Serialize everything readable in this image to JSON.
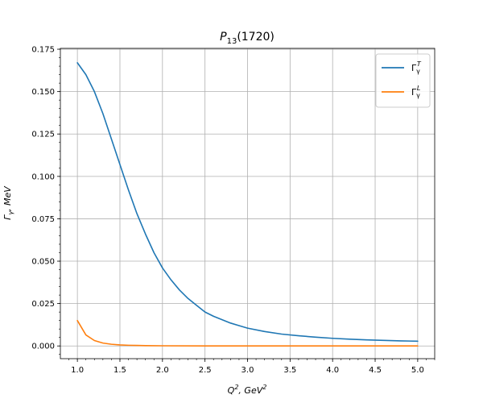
{
  "chart_data": {
    "type": "line",
    "title": {
      "main": "P",
      "sub": "13",
      "rest": "(1720)"
    },
    "xlabel": {
      "base": "Q",
      "sup": "2",
      "mid": ", GeV",
      "sup2": "2"
    },
    "ylabel": {
      "base": "Γ",
      "sub": "γ",
      "rest": ", MeV"
    },
    "xlim": [
      0.8,
      5.2
    ],
    "ylim": [
      -0.0075,
      0.1755
    ],
    "xticks": [
      "1.0",
      "1.5",
      "2.0",
      "2.5",
      "3.0",
      "3.5",
      "4.0",
      "4.5",
      "5.0"
    ],
    "yticks": [
      "0.000",
      "0.025",
      "0.050",
      "0.075",
      "0.100",
      "0.125",
      "0.150",
      "0.175"
    ],
    "grid": true,
    "legend_position": "top-right",
    "series": [
      {
        "name": "Γγ^T",
        "legend": {
          "base": "Γ",
          "sub": "γ",
          "sup": "T"
        },
        "color": "#1f77b4",
        "x": [
          1.0,
          1.1,
          1.2,
          1.3,
          1.4,
          1.5,
          1.6,
          1.7,
          1.8,
          1.9,
          2.0,
          2.1,
          2.2,
          2.3,
          2.4,
          2.5,
          2.6,
          2.7,
          2.8,
          2.9,
          3.0,
          3.2,
          3.4,
          3.6,
          3.8,
          4.0,
          4.2,
          4.4,
          4.6,
          4.8,
          5.0
        ],
        "y": [
          0.167,
          0.16,
          0.15,
          0.137,
          0.122,
          0.107,
          0.092,
          0.078,
          0.066,
          0.055,
          0.046,
          0.039,
          0.033,
          0.028,
          0.024,
          0.02,
          0.0175,
          0.0155,
          0.0135,
          0.012,
          0.0105,
          0.0085,
          0.007,
          0.006,
          0.0052,
          0.0045,
          0.004,
          0.0036,
          0.0033,
          0.003,
          0.0028
        ]
      },
      {
        "name": "Γγ^L",
        "legend": {
          "base": "Γ",
          "sub": "γ",
          "sup": "L"
        },
        "color": "#ff7f0e",
        "x": [
          1.0,
          1.1,
          1.2,
          1.3,
          1.4,
          1.5,
          1.6,
          1.7,
          1.8,
          2.0,
          2.5,
          3.0,
          3.5,
          4.0,
          4.5,
          5.0
        ],
        "y": [
          0.015,
          0.0065,
          0.0032,
          0.0017,
          0.001,
          0.0006,
          0.0004,
          0.0003,
          0.0002,
          0.0001,
          0.0,
          0.0,
          0.0,
          0.0,
          0.0,
          0.0
        ]
      }
    ]
  }
}
